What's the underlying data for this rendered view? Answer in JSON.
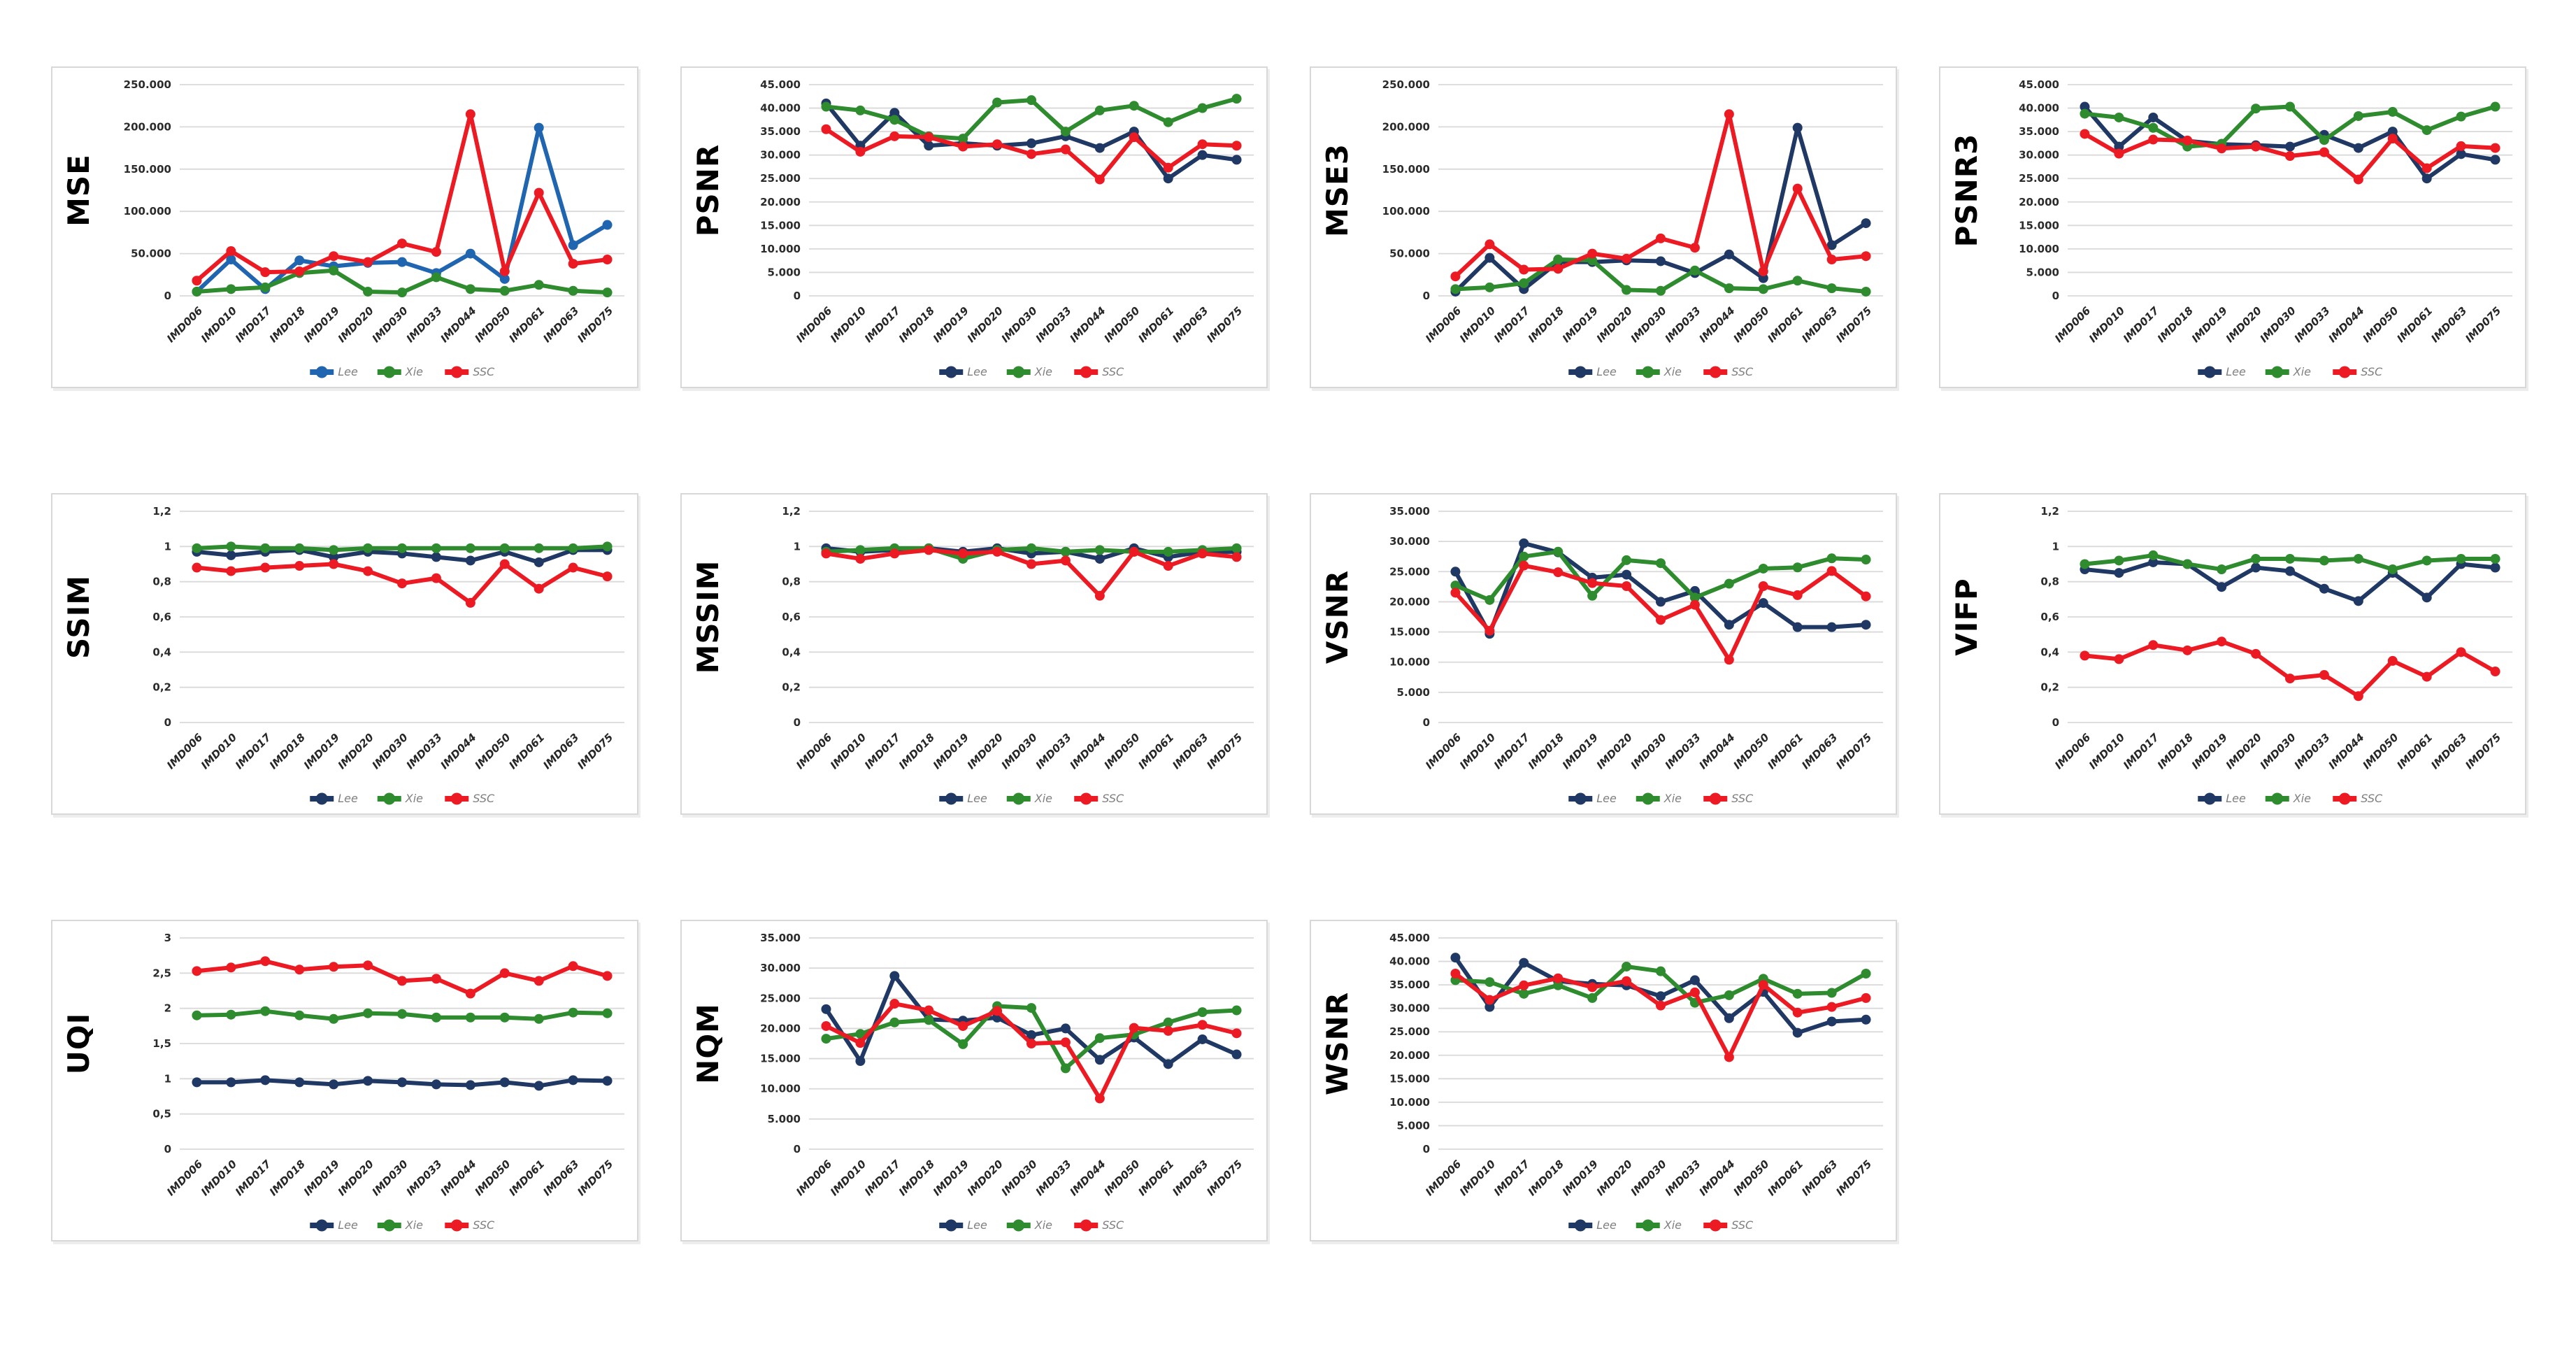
{
  "page": {
    "background": "#ffffff"
  },
  "colors": {
    "grid": "#d9d9d9",
    "tick_text": "#262626",
    "legend_text": "#7f7f7f",
    "lee_navy": "#1f3864",
    "lee_bright_blue": "#2065b0",
    "xie_green": "#2e8b2e",
    "ssc_red": "#ec1a23"
  },
  "categories": [
    "IMD006",
    "IMD010",
    "IMD017",
    "IMD018",
    "IMD019",
    "IMD020",
    "IMD030",
    "IMD033",
    "IMD044",
    "IMD050",
    "IMD061",
    "IMD063",
    "IMD075"
  ],
  "legend_labels": [
    "Lee",
    "Xie",
    "SSC"
  ],
  "chart_data": [
    {
      "type": "line",
      "title": "MSE",
      "xlabel": "",
      "ylabel": "MSE",
      "ylim": [
        0,
        250000
      ],
      "y_max": 250000,
      "grid": true,
      "legend_position": "bottom",
      "y_ticks": [
        "250.000",
        "200.000",
        "150.000",
        "100.000",
        "50.000",
        "0"
      ],
      "series": [
        {
          "name": "Lee",
          "color": "#2065b0",
          "values": [
            5000,
            43000,
            8000,
            42000,
            35000,
            39000,
            40000,
            27000,
            50000,
            20000,
            199000,
            60000,
            84000
          ]
        },
        {
          "name": "Xie",
          "color": "#2e8b2e",
          "values": [
            5000,
            8000,
            10000,
            27000,
            30000,
            5000,
            4000,
            22000,
            8000,
            6000,
            13000,
            6000,
            4000
          ]
        },
        {
          "name": "SSC",
          "color": "#ec1a23",
          "values": [
            18000,
            53000,
            28000,
            29000,
            47000,
            40000,
            62000,
            52000,
            215000,
            29000,
            122000,
            38000,
            43000
          ]
        }
      ]
    },
    {
      "type": "line",
      "title": "PSNR",
      "xlabel": "",
      "ylabel": "PSNR",
      "ylim": [
        0,
        45000
      ],
      "y_max": 45000,
      "grid": true,
      "legend_position": "bottom",
      "y_ticks": [
        "45.000",
        "40.000",
        "35.000",
        "30.000",
        "25.000",
        "20.000",
        "15.000",
        "10.000",
        "5.000",
        "0"
      ],
      "series": [
        {
          "name": "Lee",
          "color": "#1f3864",
          "values": [
            41000,
            32000,
            39000,
            32000,
            32500,
            32000,
            32500,
            34000,
            31500,
            35000,
            25000,
            30000,
            29000
          ]
        },
        {
          "name": "Xie",
          "color": "#2e8b2e",
          "values": [
            40300,
            39500,
            37500,
            34000,
            33500,
            41200,
            41700,
            35000,
            39500,
            40500,
            37000,
            40000,
            42000
          ]
        },
        {
          "name": "SSC",
          "color": "#ec1a23",
          "values": [
            35500,
            30700,
            34000,
            33800,
            31800,
            32300,
            30200,
            31200,
            24800,
            33800,
            27300,
            32300,
            32000
          ]
        }
      ]
    },
    {
      "type": "line",
      "title": "MSE3",
      "xlabel": "",
      "ylabel": "MSE3",
      "ylim": [
        0,
        250000
      ],
      "y_max": 250000,
      "grid": true,
      "legend_position": "bottom",
      "y_ticks": [
        "250.000",
        "200.000",
        "150.000",
        "100.000",
        "50.000",
        "0"
      ],
      "series": [
        {
          "name": "Lee",
          "color": "#1f3864",
          "values": [
            5000,
            45000,
            8000,
            40000,
            40000,
            42000,
            41000,
            27000,
            49000,
            21000,
            199000,
            60000,
            86000
          ]
        },
        {
          "name": "Xie",
          "color": "#2e8b2e",
          "values": [
            8000,
            10000,
            15000,
            43000,
            42000,
            7000,
            6000,
            30000,
            9000,
            8000,
            18000,
            9000,
            5000
          ]
        },
        {
          "name": "SSC",
          "color": "#ec1a23",
          "values": [
            23000,
            61000,
            31000,
            32000,
            50000,
            44000,
            68000,
            57000,
            215000,
            29000,
            127000,
            43000,
            47000
          ]
        }
      ]
    },
    {
      "type": "line",
      "title": "PSNR3",
      "xlabel": "",
      "ylabel": "PSNR3",
      "ylim": [
        0,
        45000
      ],
      "y_max": 45000,
      "grid": true,
      "legend_position": "bottom",
      "y_ticks": [
        "45.000",
        "40.000",
        "35.000",
        "30.000",
        "25.000",
        "20.000",
        "15.000",
        "10.000",
        "5.000",
        "0"
      ],
      "series": [
        {
          "name": "Lee",
          "color": "#1f3864",
          "values": [
            40300,
            31800,
            38000,
            33000,
            32300,
            32100,
            31800,
            34300,
            31500,
            35000,
            25000,
            30200,
            29000
          ]
        },
        {
          "name": "Xie",
          "color": "#2e8b2e",
          "values": [
            38800,
            38000,
            35800,
            31800,
            32400,
            39900,
            40300,
            33200,
            38300,
            39200,
            35300,
            38200,
            40300
          ]
        },
        {
          "name": "SSC",
          "color": "#ec1a23",
          "values": [
            34500,
            30300,
            33300,
            33100,
            31400,
            31800,
            29800,
            30600,
            24800,
            33500,
            27200,
            31900,
            31500
          ]
        }
      ]
    },
    {
      "type": "line",
      "title": "SSIM",
      "xlabel": "",
      "ylabel": "SSIM",
      "ylim": [
        0,
        1.2
      ],
      "y_max": 1.2,
      "grid": true,
      "legend_position": "bottom",
      "y_ticks": [
        "1,2",
        "1",
        "0,8",
        "0,6",
        "0,4",
        "0,2",
        "0"
      ],
      "series": [
        {
          "name": "Lee",
          "color": "#1f3864",
          "values": [
            0.97,
            0.95,
            0.97,
            0.98,
            0.94,
            0.97,
            0.96,
            0.94,
            0.92,
            0.97,
            0.91,
            0.98,
            0.98
          ]
        },
        {
          "name": "Xie",
          "color": "#2e8b2e",
          "values": [
            0.99,
            1.0,
            0.99,
            0.99,
            0.98,
            0.99,
            0.99,
            0.99,
            0.99,
            0.99,
            0.99,
            0.99,
            1.0
          ]
        },
        {
          "name": "SSC",
          "color": "#ec1a23",
          "values": [
            0.88,
            0.86,
            0.88,
            0.89,
            0.9,
            0.86,
            0.79,
            0.82,
            0.68,
            0.9,
            0.76,
            0.88,
            0.83
          ]
        }
      ]
    },
    {
      "type": "line",
      "title": "MSSIM",
      "xlabel": "",
      "ylabel": "MSSIM",
      "ylim": [
        0,
        1.2
      ],
      "y_max": 1.2,
      "grid": true,
      "legend_position": "bottom",
      "y_ticks": [
        "1,2",
        "1",
        "0,8",
        "0,6",
        "0,4",
        "0,2",
        "0"
      ],
      "series": [
        {
          "name": "Lee",
          "color": "#1f3864",
          "values": [
            0.99,
            0.97,
            0.98,
            0.99,
            0.97,
            0.99,
            0.96,
            0.97,
            0.93,
            0.99,
            0.94,
            0.97,
            0.97
          ]
        },
        {
          "name": "Xie",
          "color": "#2e8b2e",
          "values": [
            0.97,
            0.98,
            0.99,
            0.99,
            0.93,
            0.98,
            0.99,
            0.97,
            0.98,
            0.97,
            0.97,
            0.98,
            0.99
          ]
        },
        {
          "name": "SSC",
          "color": "#ec1a23",
          "values": [
            0.96,
            0.93,
            0.96,
            0.98,
            0.96,
            0.97,
            0.9,
            0.92,
            0.72,
            0.97,
            0.89,
            0.96,
            0.94
          ]
        }
      ]
    },
    {
      "type": "line",
      "title": "VSNR",
      "xlabel": "",
      "ylabel": "VSNR",
      "ylim": [
        0,
        35000
      ],
      "y_max": 35000,
      "grid": true,
      "legend_position": "bottom",
      "y_ticks": [
        "35.000",
        "30.000",
        "25.000",
        "20.000",
        "15.000",
        "10.000",
        "5.000",
        "0"
      ],
      "series": [
        {
          "name": "Lee",
          "color": "#1f3864",
          "values": [
            25000,
            14700,
            29700,
            28200,
            24000,
            24500,
            20000,
            21800,
            16200,
            19800,
            15800,
            15800,
            16200
          ]
        },
        {
          "name": "Xie",
          "color": "#2e8b2e",
          "values": [
            22700,
            20300,
            27500,
            28300,
            21000,
            26900,
            26400,
            20700,
            23000,
            25500,
            25700,
            27200,
            27000
          ]
        },
        {
          "name": "SSC",
          "color": "#ec1a23",
          "values": [
            21500,
            15200,
            26000,
            24900,
            23100,
            22600,
            17000,
            19500,
            10400,
            22600,
            21100,
            25100,
            20900
          ]
        }
      ]
    },
    {
      "type": "line",
      "title": "VIFP",
      "xlabel": "",
      "ylabel": "VIFP",
      "ylim": [
        0,
        1.2
      ],
      "y_max": 1.2,
      "grid": true,
      "legend_position": "bottom",
      "y_ticks": [
        "1,2",
        "1",
        "0,8",
        "0,6",
        "0,4",
        "0,2",
        "0"
      ],
      "series": [
        {
          "name": "Lee",
          "color": "#1f3864",
          "values": [
            0.87,
            0.85,
            0.91,
            0.9,
            0.77,
            0.88,
            0.86,
            0.76,
            0.69,
            0.85,
            0.71,
            0.9,
            0.88
          ]
        },
        {
          "name": "Xie",
          "color": "#2e8b2e",
          "values": [
            0.9,
            0.92,
            0.95,
            0.9,
            0.87,
            0.93,
            0.93,
            0.92,
            0.93,
            0.87,
            0.92,
            0.93,
            0.93
          ]
        },
        {
          "name": "SSC",
          "color": "#ec1a23",
          "values": [
            0.38,
            0.36,
            0.44,
            0.41,
            0.46,
            0.39,
            0.25,
            0.27,
            0.15,
            0.35,
            0.26,
            0.4,
            0.29
          ]
        }
      ]
    },
    {
      "type": "line",
      "title": "UQI",
      "xlabel": "",
      "ylabel": "UQI",
      "ylim": [
        0,
        3
      ],
      "y_max": 3,
      "grid": true,
      "legend_position": "bottom",
      "y_ticks": [
        "3",
        "2,5",
        "2",
        "1,5",
        "1",
        "0,5",
        "0"
      ],
      "series": [
        {
          "name": "Lee",
          "color": "#1f3864",
          "values": [
            0.95,
            0.95,
            0.98,
            0.95,
            0.92,
            0.97,
            0.95,
            0.92,
            0.91,
            0.95,
            0.9,
            0.98,
            0.97
          ]
        },
        {
          "name": "Xie",
          "color": "#2e8b2e",
          "values": [
            1.9,
            1.91,
            1.96,
            1.9,
            1.85,
            1.93,
            1.92,
            1.87,
            1.87,
            1.87,
            1.85,
            1.94,
            1.93
          ]
        },
        {
          "name": "SSC",
          "color": "#ec1a23",
          "values": [
            2.53,
            2.58,
            2.67,
            2.55,
            2.59,
            2.61,
            2.39,
            2.42,
            2.21,
            2.5,
            2.39,
            2.6,
            2.46
          ]
        }
      ]
    },
    {
      "type": "line",
      "title": "NQM",
      "xlabel": "",
      "ylabel": "NQM",
      "ylim": [
        0,
        35000
      ],
      "y_max": 35000,
      "grid": true,
      "legend_position": "bottom",
      "y_ticks": [
        "35.000",
        "30.000",
        "25.000",
        "20.000",
        "15.000",
        "10.000",
        "5.000",
        "0"
      ],
      "series": [
        {
          "name": "Lee",
          "color": "#1f3864",
          "values": [
            23200,
            14600,
            28700,
            21500,
            21300,
            21800,
            18900,
            20000,
            14800,
            18500,
            14100,
            18200,
            15700
          ]
        },
        {
          "name": "Xie",
          "color": "#2e8b2e",
          "values": [
            18300,
            19100,
            21000,
            21400,
            17400,
            23700,
            23400,
            13400,
            18400,
            19000,
            21000,
            22700,
            23000
          ]
        },
        {
          "name": "SSC",
          "color": "#ec1a23",
          "values": [
            20400,
            17600,
            24100,
            23000,
            20400,
            22900,
            17500,
            17700,
            8400,
            20100,
            19600,
            20600,
            19200
          ]
        }
      ]
    },
    {
      "type": "line",
      "title": "WSNR",
      "xlabel": "",
      "ylabel": "WSNR",
      "ylim": [
        0,
        45000
      ],
      "y_max": 45000,
      "grid": true,
      "legend_position": "bottom",
      "y_ticks": [
        "45.000",
        "40.000",
        "35.000",
        "30.000",
        "25.000",
        "20.000",
        "15.000",
        "10.000",
        "5.000",
        "0"
      ],
      "series": [
        {
          "name": "Lee",
          "color": "#1f3864",
          "values": [
            40800,
            30300,
            39700,
            35800,
            35200,
            34900,
            32600,
            36000,
            27900,
            33500,
            24800,
            27200,
            27600
          ]
        },
        {
          "name": "Xie",
          "color": "#2e8b2e",
          "values": [
            36000,
            35600,
            33100,
            34900,
            32200,
            38900,
            37900,
            31200,
            32800,
            36300,
            33100,
            33300,
            37400
          ]
        },
        {
          "name": "SSC",
          "color": "#ec1a23",
          "values": [
            37400,
            31800,
            34900,
            36400,
            34500,
            35800,
            30600,
            33400,
            19600,
            35000,
            29100,
            30300,
            32200
          ]
        }
      ]
    }
  ]
}
